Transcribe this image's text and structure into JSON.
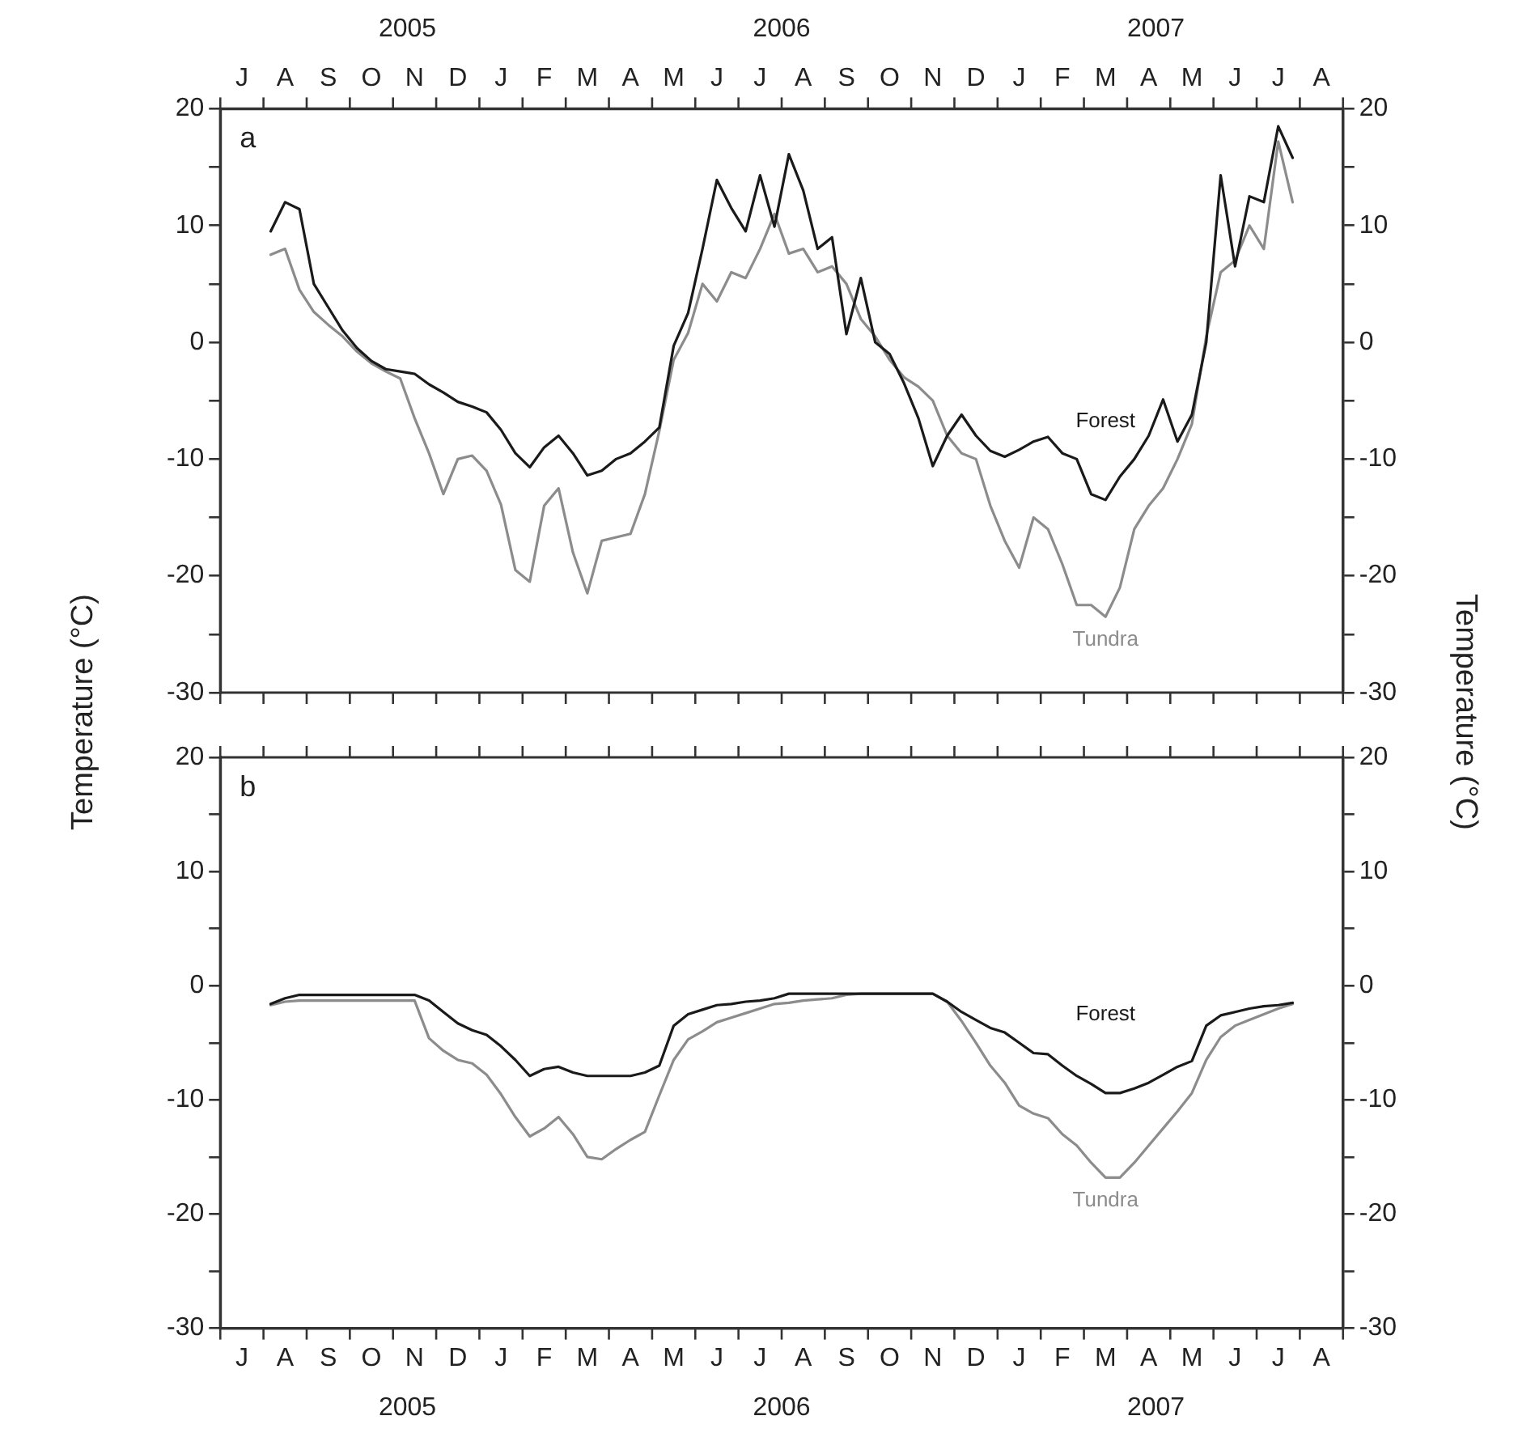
{
  "chart_data": [
    {
      "type": "line",
      "ylabel": "Temperature (°C)",
      "y2label": "Temperature (°C)",
      "categories": [
        null,
        "J",
        null,
        null,
        "A",
        null,
        null,
        "S",
        null,
        null,
        "O",
        null,
        null,
        "N",
        null,
        null,
        "D",
        null,
        null,
        "J",
        null,
        null,
        "F",
        null,
        null,
        "M",
        null,
        null,
        "A",
        null,
        null,
        "M",
        null,
        null,
        "J",
        null,
        null,
        "J",
        null,
        null,
        "A",
        null,
        null,
        "S",
        null,
        null,
        "O",
        null,
        null,
        "N",
        null,
        null,
        "D",
        null,
        null,
        "J",
        null,
        null,
        "F",
        null,
        null,
        "M",
        null,
        null,
        "A",
        null,
        null,
        "M",
        null,
        null,
        "J",
        null,
        null,
        "J",
        null,
        null,
        "A",
        null
      ],
      "ylim": [
        -30,
        20
      ],
      "yticks": [
        -30,
        {
          "value": -25,
          "label": null
        },
        -20,
        {
          "value": -15,
          "label": null
        },
        -10,
        {
          "value": -5,
          "label": null
        },
        0,
        {
          "value": 5,
          "label": null
        },
        10,
        {
          "value": 15,
          "label": null
        },
        20
      ],
      "y2lim": [
        -30,
        20
      ],
      "y2ticks": [
        -30,
        {
          "value": -25,
          "label": null
        },
        -20,
        {
          "value": -15,
          "label": null
        },
        -10,
        {
          "value": -5,
          "label": null
        },
        0,
        {
          "value": 5,
          "label": null
        },
        10,
        {
          "value": 15,
          "label": null
        },
        20
      ],
      "series": [
        {
          "name": "Forest",
          "color": "#1a1a1a",
          "values": [
            null,
            null,
            null,
            9.5,
            12.0,
            11.4,
            5.0,
            3.0,
            1.0,
            -0.5,
            -1.6,
            -2.3,
            -2.5,
            -2.7,
            -3.6,
            -4.3,
            -5.1,
            -5.5,
            -6.0,
            -7.5,
            -9.5,
            -10.7,
            -9.0,
            -8.0,
            -9.5,
            -11.4,
            -11.0,
            -10.0,
            -9.5,
            -8.5,
            -7.3,
            -0.3,
            2.5,
            8.0,
            13.9,
            11.5,
            9.5,
            14.3,
            9.9,
            16.1,
            13.0,
            8.0,
            9.0,
            0.7,
            5.5,
            0.0,
            -1.0,
            -3.5,
            -6.5,
            -10.6,
            -8.0,
            -6.2,
            -8.0,
            -9.3,
            -9.8,
            -9.2,
            -8.5,
            -8.1,
            -9.5,
            -10.0,
            -13.0,
            -13.5,
            -11.5,
            -10.0,
            -8.0,
            -4.9,
            -8.5,
            -6.2,
            0.0,
            14.3,
            6.5,
            12.5,
            12.0,
            18.5,
            15.8,
            null,
            null,
            null
          ]
        },
        {
          "name": "Tundra",
          "color": "#8c8c8c",
          "values": [
            null,
            null,
            null,
            7.5,
            8.0,
            4.5,
            2.6,
            1.5,
            0.5,
            -0.8,
            -1.8,
            -2.5,
            -3.1,
            -6.5,
            -9.5,
            -13.0,
            -10.0,
            -9.7,
            -11.0,
            -13.9,
            -19.5,
            -20.5,
            -14.0,
            -12.5,
            -18.0,
            -21.5,
            -17.0,
            -16.7,
            -16.4,
            -13.0,
            -7.6,
            -1.5,
            0.8,
            5.0,
            3.5,
            6.0,
            5.5,
            8.0,
            11.0,
            7.6,
            8.0,
            6.0,
            6.5,
            5.0,
            2.0,
            0.5,
            -1.5,
            -3.0,
            -3.8,
            -5.0,
            -8.0,
            -9.5,
            -10.0,
            -14.0,
            -17.0,
            -19.3,
            -15.0,
            -16.0,
            -19.0,
            -22.5,
            -22.5,
            -23.5,
            -21.0,
            -16.0,
            -14.0,
            -12.5,
            -10.0,
            -7.0,
            0.5,
            6.0,
            7.0,
            10.0,
            8.0,
            17.2,
            12.0,
            null,
            null,
            null
          ]
        }
      ],
      "annotations": [
        "a",
        "2005",
        "2006",
        "2007"
      ]
    },
    {
      "type": "line",
      "categories": [
        null,
        "J",
        null,
        null,
        "A",
        null,
        null,
        "S",
        null,
        null,
        "O",
        null,
        null,
        "N",
        null,
        null,
        "D",
        null,
        null,
        "J",
        null,
        null,
        "F",
        null,
        null,
        "M",
        null,
        null,
        "A",
        null,
        null,
        "M",
        null,
        null,
        "J",
        null,
        null,
        "J",
        null,
        null,
        "A",
        null,
        null,
        "S",
        null,
        null,
        "O",
        null,
        null,
        "N",
        null,
        null,
        "D",
        null,
        null,
        "J",
        null,
        null,
        "F",
        null,
        null,
        "M",
        null,
        null,
        "A",
        null,
        null,
        "M",
        null,
        null,
        "J",
        null,
        null,
        "J",
        null,
        null,
        "A",
        null
      ],
      "ylim": [
        -30,
        20
      ],
      "yticks": [
        -30,
        {
          "value": -25,
          "label": null
        },
        -20,
        {
          "value": -15,
          "label": null
        },
        -10,
        {
          "value": -5,
          "label": null
        },
        0,
        {
          "value": 5,
          "label": null
        },
        10,
        {
          "value": 15,
          "label": null
        },
        20
      ],
      "y2lim": [
        -30,
        20
      ],
      "y2ticks": [
        -30,
        {
          "value": -25,
          "label": null
        },
        -20,
        {
          "value": -15,
          "label": null
        },
        -10,
        {
          "value": -5,
          "label": null
        },
        0,
        {
          "value": 5,
          "label": null
        },
        10,
        {
          "value": 15,
          "label": null
        },
        20
      ],
      "series": [
        {
          "name": "Forest",
          "color": "#1a1a1a",
          "values": [
            null,
            null,
            null,
            -1.6,
            -1.1,
            -0.8,
            -0.8,
            -0.8,
            -0.8,
            -0.8,
            -0.8,
            -0.8,
            -0.8,
            -0.8,
            -1.3,
            -2.3,
            -3.3,
            -3.9,
            -4.3,
            -5.3,
            -6.5,
            -7.9,
            -7.3,
            -7.1,
            -7.6,
            -7.9,
            -7.9,
            -7.9,
            -7.9,
            -7.6,
            -7.0,
            -3.5,
            -2.5,
            -2.1,
            -1.7,
            -1.6,
            -1.4,
            -1.3,
            -1.1,
            -0.7,
            -0.7,
            -0.7,
            -0.7,
            -0.7,
            -0.7,
            -0.7,
            -0.7,
            -0.7,
            -0.7,
            -0.7,
            -1.4,
            -2.3,
            -3.0,
            -3.7,
            -4.1,
            -5.0,
            -5.9,
            -6.0,
            -7.0,
            -7.9,
            -8.6,
            -9.4,
            -9.4,
            -9.0,
            -8.5,
            -7.8,
            -7.1,
            -6.6,
            -3.5,
            -2.6,
            -2.3,
            -2.0,
            -1.8,
            -1.7,
            -1.5,
            null,
            null,
            null
          ]
        },
        {
          "name": "Tundra",
          "color": "#8c8c8c",
          "values": [
            null,
            null,
            null,
            -1.7,
            -1.4,
            -1.3,
            -1.3,
            -1.3,
            -1.3,
            -1.3,
            -1.3,
            -1.3,
            -1.3,
            -1.3,
            -4.6,
            -5.7,
            -6.5,
            -6.8,
            -7.8,
            -9.5,
            -11.5,
            -13.2,
            -12.5,
            -11.5,
            -13.0,
            -15.0,
            -15.2,
            -14.3,
            -13.5,
            -12.8,
            -9.6,
            -6.5,
            -4.7,
            -4.0,
            -3.2,
            -2.8,
            -2.4,
            -2.0,
            -1.6,
            -1.5,
            -1.3,
            -1.2,
            -1.1,
            -0.8,
            -0.7,
            -0.7,
            -0.7,
            -0.7,
            -0.7,
            -0.7,
            -1.4,
            -3.1,
            -5.0,
            -7.0,
            -8.5,
            -10.5,
            -11.2,
            -11.6,
            -13.0,
            -14.0,
            -15.5,
            -16.8,
            -16.8,
            -15.5,
            -14.0,
            -12.5,
            -11.0,
            -9.4,
            -6.5,
            -4.5,
            -3.5,
            -3.0,
            -2.5,
            -2.0,
            -1.6,
            null,
            null,
            null
          ]
        }
      ],
      "annotations": [
        "b",
        "2005",
        "2006",
        "2007"
      ]
    }
  ]
}
